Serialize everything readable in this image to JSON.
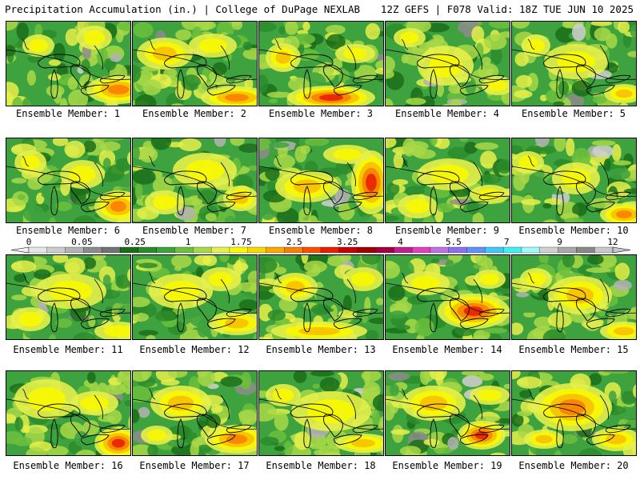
{
  "header": {
    "title": "Precipitation Accumulation (in.) | College of DuPage NEXLAB",
    "run_info": "12Z GEFS | F078 Valid: 18Z TUE JUN 10 2025"
  },
  "panels": [
    {
      "label": "Ensemble Member: 1"
    },
    {
      "label": "Ensemble Member: 2"
    },
    {
      "label": "Ensemble Member: 3"
    },
    {
      "label": "Ensemble Member: 4"
    },
    {
      "label": "Ensemble Member: 5"
    },
    {
      "label": "Ensemble Member: 6"
    },
    {
      "label": "Ensemble Member: 7"
    },
    {
      "label": "Ensemble Member: 8"
    },
    {
      "label": "Ensemble Member: 9"
    },
    {
      "label": "Ensemble Member: 10"
    },
    {
      "label": "Ensemble Member: 11"
    },
    {
      "label": "Ensemble Member: 12"
    },
    {
      "label": "Ensemble Member: 13"
    },
    {
      "label": "Ensemble Member: 14"
    },
    {
      "label": "Ensemble Member: 15"
    },
    {
      "label": "Ensemble Member: 16"
    },
    {
      "label": "Ensemble Member: 17"
    },
    {
      "label": "Ensemble Member: 18"
    },
    {
      "label": "Ensemble Member: 19"
    },
    {
      "label": "Ensemble Member: 20"
    }
  ],
  "colorbar": {
    "tick_labels": [
      "0",
      "0.05",
      "0.25",
      "1",
      "1.75",
      "2.5",
      "3.25",
      "4",
      "5.5",
      "7",
      "9",
      "12"
    ],
    "colors": [
      "#e6e6e6",
      "#cccccc",
      "#b3b3b3",
      "#8c8c8c",
      "#737373",
      "#1a6e1a",
      "#2a8c2a",
      "#3ea23e",
      "#6cc03c",
      "#a8d848",
      "#e6f04a",
      "#f8f800",
      "#f8d800",
      "#f8a800",
      "#f88000",
      "#f85000",
      "#e82000",
      "#c80000",
      "#a00000",
      "#a00040",
      "#c0208a",
      "#e040c0",
      "#c070e0",
      "#8a70f0",
      "#6090f8",
      "#40c8f8",
      "#40f0f0",
      "#a0f8f8",
      "#d0d0d0",
      "#a8a8a8",
      "#888888",
      "#c8c8c8"
    ]
  }
}
